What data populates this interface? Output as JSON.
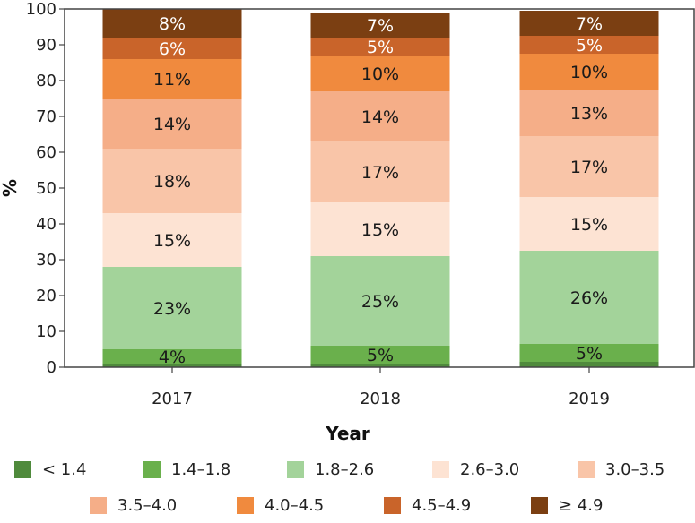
{
  "chart_data": {
    "type": "bar",
    "stacked": true,
    "xlabel": "Year",
    "ylabel": "%",
    "ylim": [
      0,
      100
    ],
    "yticks": [
      0,
      10,
      20,
      30,
      40,
      50,
      60,
      70,
      80,
      90,
      100
    ],
    "grid": false,
    "legend_position": "bottom",
    "categories": [
      "2017",
      "2018",
      "2019"
    ],
    "series": [
      {
        "name": "< 1.4",
        "color": "#4f8a3c",
        "values": [
          1,
          1,
          1.5
        ],
        "labels": [
          "",
          "",
          ""
        ]
      },
      {
        "name": "1.4–1.8",
        "color": "#6ab04c",
        "values": [
          4,
          5,
          5
        ],
        "labels": [
          "4%",
          "5%",
          "5%"
        ]
      },
      {
        "name": "1.8–2.6",
        "color": "#a3d39a",
        "values": [
          23,
          25,
          26
        ],
        "labels": [
          "23%",
          "25%",
          "26%"
        ]
      },
      {
        "name": "2.6–3.0",
        "color": "#fde3d3",
        "values": [
          15,
          15,
          15
        ],
        "labels": [
          "15%",
          "15%",
          "15%"
        ]
      },
      {
        "name": "3.0–3.5",
        "color": "#f9c5a8",
        "values": [
          18,
          17,
          17
        ],
        "labels": [
          "18%",
          "17%",
          "17%"
        ]
      },
      {
        "name": "3.5–4.0",
        "color": "#f5ae88",
        "values": [
          14,
          14,
          13
        ],
        "labels": [
          "14%",
          "14%",
          "13%"
        ]
      },
      {
        "name": "4.0–4.5",
        "color": "#f08a3e",
        "values": [
          11,
          10,
          10
        ],
        "labels": [
          "11%",
          "10%",
          "10%"
        ]
      },
      {
        "name": "4.5–4.9",
        "color": "#c9642a",
        "values": [
          6,
          5,
          5
        ],
        "labels": [
          "6%",
          "5%",
          "5%"
        ]
      },
      {
        "name": "≥ 4.9",
        "color": "#7b3f12",
        "values": [
          8,
          7,
          7
        ],
        "labels": [
          "8%",
          "7%",
          "7%"
        ]
      }
    ]
  }
}
